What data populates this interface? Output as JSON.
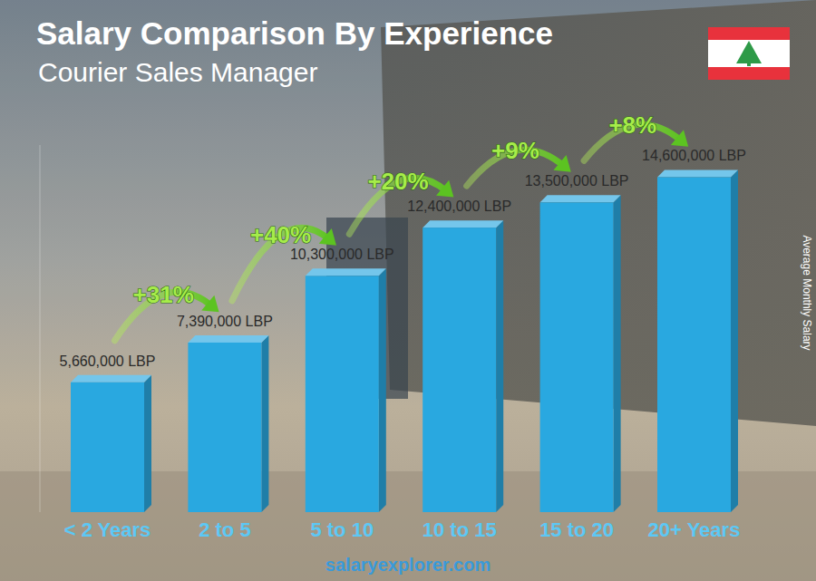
{
  "chart_data": {
    "type": "bar",
    "title": "Salary Comparison By Experience",
    "subtitle": "Courier Sales Manager",
    "ylabel": "Average Monthly Salary",
    "source": "salaryexplorer.com",
    "categories": [
      "< 2 Years",
      "2 to 5",
      "5 to 10",
      "10 to 15",
      "15 to 20",
      "20+ Years"
    ],
    "values": [
      5660000,
      7390000,
      10300000,
      12400000,
      13500000,
      14600000
    ],
    "value_labels": [
      "5,660,000 LBP",
      "7,390,000 LBP",
      "10,300,000 LBP",
      "12,400,000 LBP",
      "13,500,000 LBP",
      "14,600,000 LBP"
    ],
    "annotations": [
      "+31%",
      "+40%",
      "+20%",
      "+9%",
      "+8%"
    ],
    "color": "#29a8e0",
    "ylim": [
      0,
      16000000
    ],
    "data_labels": true,
    "tick_labels": "x",
    "grid": false
  }
}
